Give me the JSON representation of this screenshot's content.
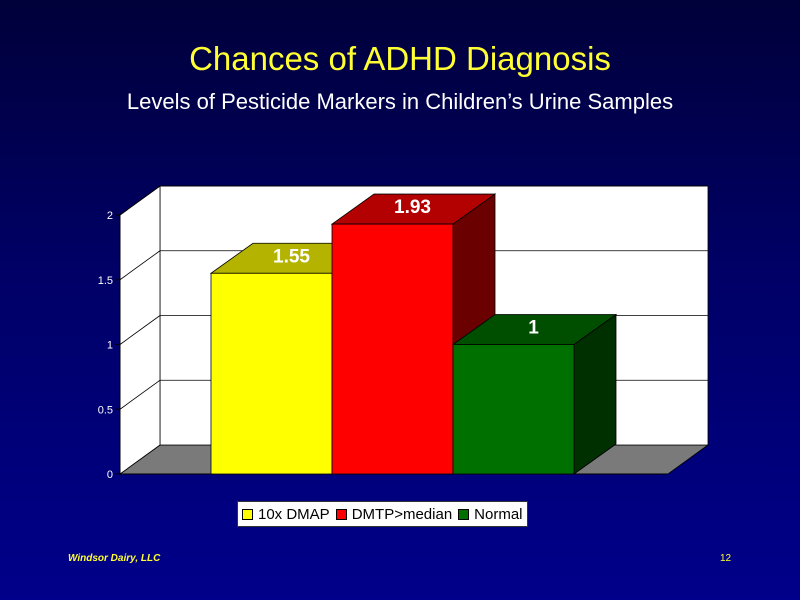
{
  "slide": {
    "title": "Chances of ADHD Diagnosis",
    "subtitle": "Levels of Pesticide Markers in Children’s Urine Samples",
    "footer_left": "Windsor Dairy, LLC",
    "page_number": "12",
    "title_color": "#ffff33"
  },
  "chart_data": {
    "type": "bar",
    "title": "",
    "subtitle": "",
    "xlabel": "",
    "ylabel": "",
    "ylim": [
      0,
      2
    ],
    "yticks": [
      "0",
      "0.5",
      "1",
      "1.5",
      "2"
    ],
    "grid": true,
    "three_d": true,
    "legend_position": "bottom",
    "series": [
      {
        "name": "10x DMAP",
        "value": 1.55,
        "label": "1.55",
        "color": "#ffff00"
      },
      {
        "name": "DMTP>median",
        "value": 1.93,
        "label": "1.93",
        "color": "#ff0000"
      },
      {
        "name": "Normal",
        "value": 1,
        "label": "1",
        "color": "#007000"
      }
    ]
  }
}
